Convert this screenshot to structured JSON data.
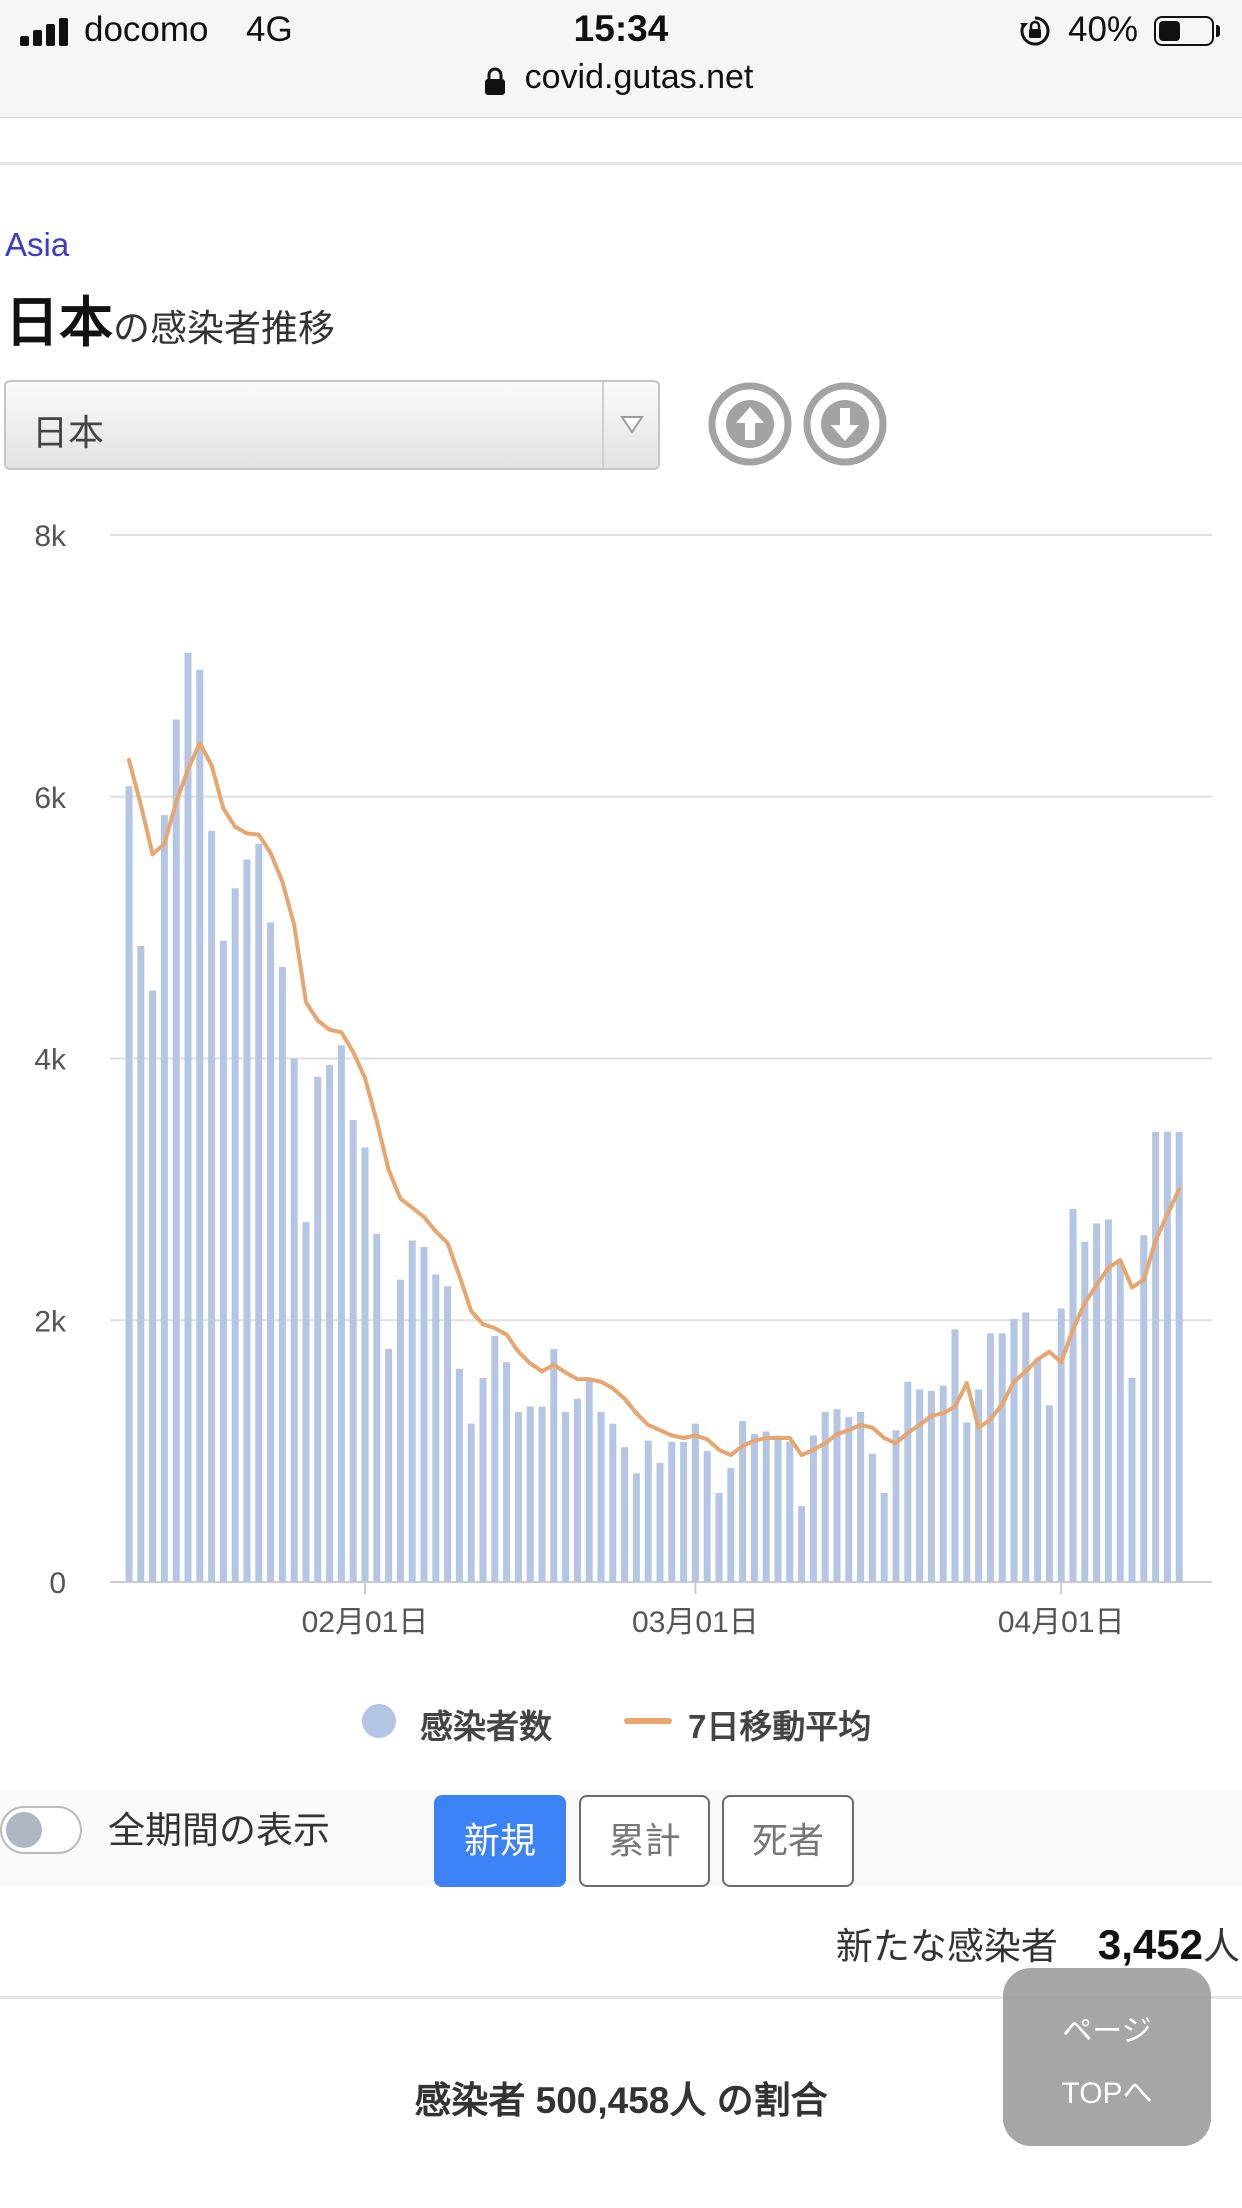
{
  "status_bar": {
    "carrier": "docomo",
    "network": "4G",
    "time": "15:34",
    "battery": "40%",
    "battery_level": 0.4,
    "url": "covid.gutas.net"
  },
  "header": {
    "region_link": "Asia",
    "country_name": "日本",
    "heading_suffix": "の感染者推移"
  },
  "country_select": {
    "selected": "日本"
  },
  "icons": {
    "prev": "arrow-up-circle-icon",
    "next": "arrow-down-circle-icon",
    "lock": "lock-icon",
    "rotation_lock": "rotation-lock-icon"
  },
  "colors": {
    "bar": "#b4c6e4",
    "line": "#e8a56e",
    "grid": "#e0e0e0",
    "accent": "#3b82f6"
  },
  "chart_data": {
    "type": "bar",
    "y_ticks": [
      "0",
      "2k",
      "4k",
      "6k",
      "8k"
    ],
    "ylim": [
      0,
      8000
    ],
    "x_ticks": [
      {
        "label": "02月01日",
        "index": 20
      },
      {
        "label": "03月01日",
        "index": 48
      },
      {
        "label": "04月01日",
        "index": 79
      }
    ],
    "grid": true,
    "legend_position": "bottom",
    "series": [
      {
        "name": "感染者数",
        "type": "bar",
        "values": [
          6080,
          4860,
          4520,
          5860,
          6590,
          7100,
          6970,
          5740,
          4900,
          5300,
          5520,
          5640,
          5040,
          4700,
          4000,
          2750,
          3860,
          3950,
          4100,
          3530,
          3320,
          2660,
          1780,
          2310,
          2610,
          2560,
          2350,
          2260,
          1630,
          1210,
          1560,
          1880,
          1680,
          1300,
          1340,
          1340,
          1780,
          1300,
          1400,
          1540,
          1300,
          1210,
          1030,
          830,
          1080,
          910,
          1070,
          1070,
          1210,
          1000,
          680,
          870,
          1230,
          1130,
          1150,
          1120,
          1070,
          580,
          1120,
          1300,
          1320,
          1260,
          1300,
          980,
          680,
          1160,
          1530,
          1470,
          1460,
          1500,
          1930,
          1220,
          1470,
          1900,
          1900,
          2010,
          2060,
          1710,
          1350,
          2090,
          2850,
          2600,
          2740,
          2770,
          2450,
          1560,
          2650,
          3440,
          3440,
          3440
        ]
      },
      {
        "name": "7日移動平均",
        "type": "line",
        "values": [
          6280,
          5940,
          5560,
          5640,
          5960,
          6210,
          6410,
          6240,
          5910,
          5770,
          5720,
          5710,
          5570,
          5350,
          5020,
          4430,
          4290,
          4220,
          4200,
          4050,
          3850,
          3520,
          3150,
          2930,
          2860,
          2790,
          2680,
          2590,
          2340,
          2070,
          1970,
          1940,
          1890,
          1760,
          1670,
          1610,
          1660,
          1600,
          1550,
          1550,
          1530,
          1480,
          1400,
          1290,
          1200,
          1160,
          1120,
          1100,
          1120,
          1090,
          1010,
          970,
          1040,
          1080,
          1100,
          1100,
          1100,
          970,
          1010,
          1060,
          1130,
          1160,
          1200,
          1180,
          1100,
          1060,
          1140,
          1200,
          1270,
          1290,
          1340,
          1520,
          1180,
          1240,
          1360,
          1530,
          1610,
          1700,
          1760,
          1680,
          1930,
          2130,
          2270,
          2400,
          2460,
          2250,
          2310,
          2610,
          2810,
          3000
        ]
      }
    ]
  },
  "controls": {
    "toggle_label": "全期間の表示",
    "toggle_on": false,
    "modes": [
      "新規",
      "累計",
      "死者"
    ],
    "active_mode": "新規"
  },
  "summary": {
    "new_cases_label": "新たな感染者",
    "new_cases_value": "3,452",
    "new_cases_unit": "人",
    "share_heading": "感染者 500,458人 の割合"
  },
  "page_top": {
    "line1": "ページ",
    "line2": "TOPへ"
  }
}
